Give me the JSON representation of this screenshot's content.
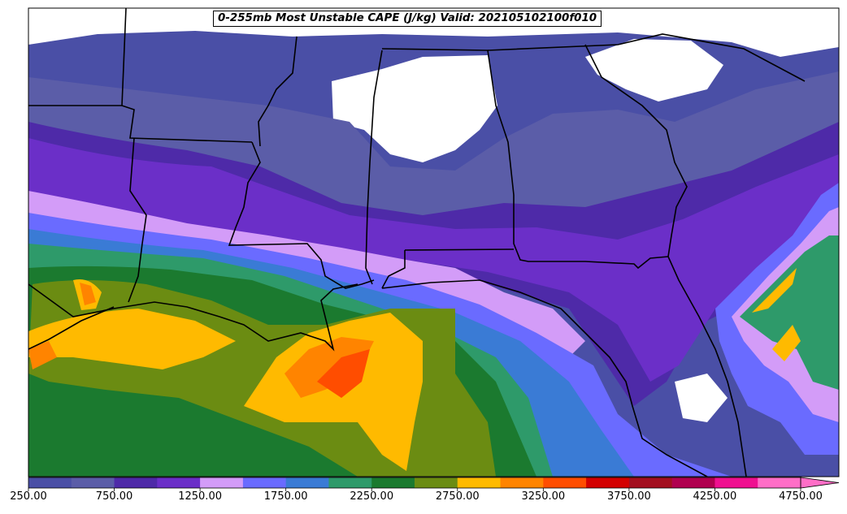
{
  "title": "0-255mb Most Unstable CAPE (J/kg) Valid: 202105102100f010",
  "colorbar": {
    "tick_labels": [
      "250.00",
      "750.00",
      "1250.00",
      "1750.00",
      "2250.00",
      "2750.00",
      "3250.00",
      "3750.00",
      "4250.00",
      "4750.00"
    ],
    "levels": [
      250,
      500,
      750,
      1000,
      1250,
      1500,
      1750,
      2000,
      2250,
      2500,
      2750,
      3000,
      3250,
      3500,
      3750,
      4000,
      4250,
      4500,
      4750
    ],
    "colors": [
      "#4a4fa6",
      "#5b5da8",
      "#4e2aa8",
      "#6b2fc8",
      "#d39cf8",
      "#6a6bff",
      "#3a7bd5",
      "#2e9a6a",
      "#1b7a2f",
      "#6b8c12",
      "#ffba00",
      "#ff8400",
      "#ff4d00",
      "#d30000",
      "#a30f1f",
      "#b0004f",
      "#ef1090",
      "#ff6ec7"
    ],
    "extend": "max"
  },
  "map_region": "Southeastern United States",
  "palette": {
    "background": "#ffffff",
    "state_borders": "#000000"
  }
}
